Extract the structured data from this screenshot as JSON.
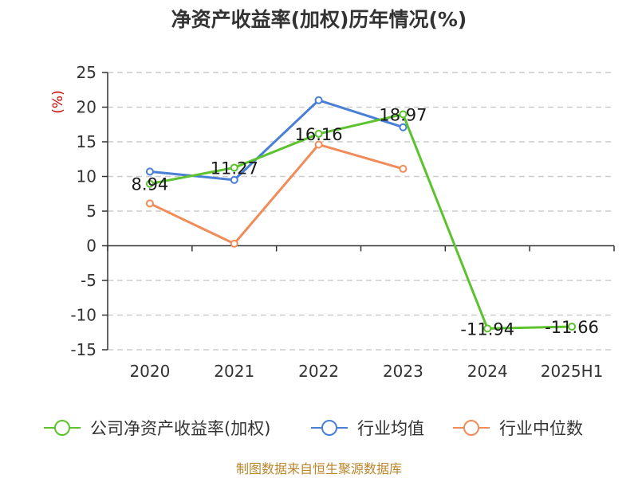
{
  "chart_data": {
    "type": "line",
    "title": "净资产收益率(加权)历年情况(%)",
    "ylabel": "(%)",
    "categories": [
      "2020",
      "2021",
      "2022",
      "2023",
      "2024",
      "2025H1"
    ],
    "ylim": [
      -15,
      25
    ],
    "yticks": [
      25,
      20,
      15,
      10,
      5,
      0,
      -5,
      -10,
      -15
    ],
    "grid": true,
    "legend_position": "bottom",
    "series": [
      {
        "name": "公司净资产收益率(加权)",
        "color": "#5cc22e",
        "values": [
          8.94,
          11.27,
          16.16,
          18.97,
          -11.94,
          -11.66
        ],
        "labels": [
          "8.94",
          "11.27",
          "16.16",
          "18.97",
          "-11.94",
          "-11.66"
        ]
      },
      {
        "name": "行业均值",
        "color": "#4a7fd6",
        "values": [
          10.7,
          9.5,
          21.0,
          17.1,
          null,
          null
        ]
      },
      {
        "name": "行业中位数",
        "color": "#f08c5a",
        "values": [
          6.1,
          0.3,
          14.6,
          11.1,
          null,
          null
        ]
      }
    ]
  },
  "source_text": "制图数据来自恒生聚源数据库"
}
